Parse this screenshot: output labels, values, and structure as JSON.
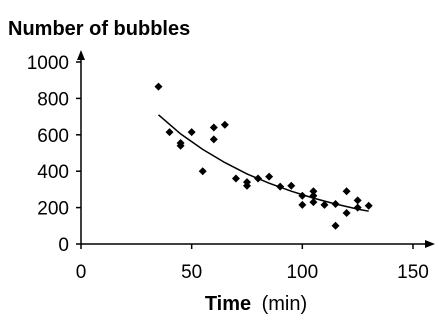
{
  "chart_data": {
    "type": "scatter",
    "title": "",
    "ylabel": "Number of bubbles",
    "xlabel": "Time",
    "xlabel_unit": "(min)",
    "xlim": [
      0,
      150
    ],
    "ylim": [
      0,
      1000
    ],
    "x_ticks": [
      0,
      50,
      100,
      150
    ],
    "y_ticks": [
      0,
      200,
      400,
      600,
      800,
      1000
    ],
    "grid": false,
    "legend": "none",
    "marker": "diamond",
    "colors": {
      "points": "#000000",
      "axes": "#000000",
      "trendline": "#000000"
    },
    "points": [
      {
        "x": 35,
        "y": 865
      },
      {
        "x": 40,
        "y": 615
      },
      {
        "x": 45,
        "y": 555
      },
      {
        "x": 45,
        "y": 540
      },
      {
        "x": 50,
        "y": 615
      },
      {
        "x": 55,
        "y": 400
      },
      {
        "x": 60,
        "y": 640
      },
      {
        "x": 60,
        "y": 575
      },
      {
        "x": 65,
        "y": 655
      },
      {
        "x": 70,
        "y": 360
      },
      {
        "x": 75,
        "y": 340
      },
      {
        "x": 75,
        "y": 320
      },
      {
        "x": 80,
        "y": 360
      },
      {
        "x": 85,
        "y": 370
      },
      {
        "x": 90,
        "y": 315
      },
      {
        "x": 95,
        "y": 320
      },
      {
        "x": 100,
        "y": 265
      },
      {
        "x": 100,
        "y": 215
      },
      {
        "x": 105,
        "y": 290
      },
      {
        "x": 105,
        "y": 265
      },
      {
        "x": 105,
        "y": 230
      },
      {
        "x": 110,
        "y": 215
      },
      {
        "x": 115,
        "y": 220
      },
      {
        "x": 115,
        "y": 100
      },
      {
        "x": 120,
        "y": 290
      },
      {
        "x": 120,
        "y": 170
      },
      {
        "x": 125,
        "y": 240
      },
      {
        "x": 125,
        "y": 200
      },
      {
        "x": 130,
        "y": 210
      }
    ],
    "trendline": {
      "type": "exponential",
      "x": [
        35,
        45,
        55,
        65,
        75,
        85,
        95,
        105,
        115,
        125,
        130
      ],
      "y": [
        710,
        605,
        520,
        447,
        385,
        334,
        290,
        252,
        220,
        192,
        180
      ]
    }
  }
}
